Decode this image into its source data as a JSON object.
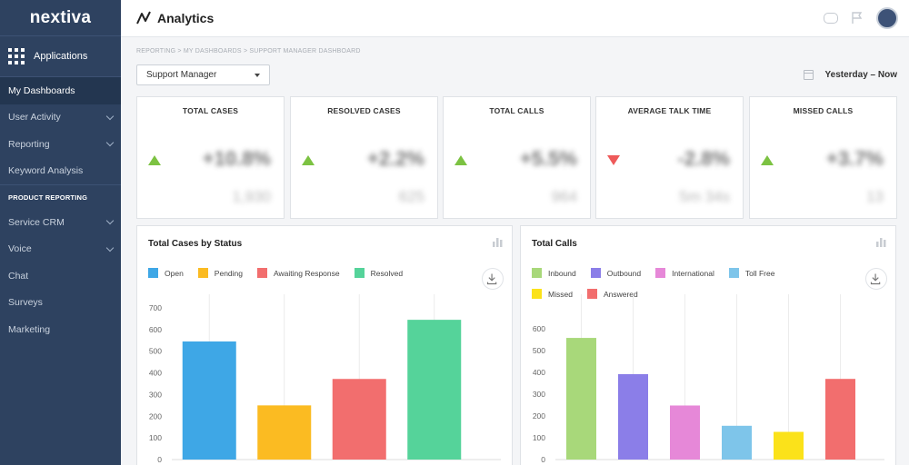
{
  "brand": "nextiva",
  "sidebar": {
    "applications_label": "Applications",
    "items": [
      {
        "label": "My Dashboards",
        "active": true,
        "chevron": false
      },
      {
        "label": "User Activity",
        "active": false,
        "chevron": true
      },
      {
        "label": "Reporting",
        "active": false,
        "chevron": true
      },
      {
        "label": "Keyword Analysis",
        "active": false,
        "chevron": false
      }
    ],
    "section_label": "PRODUCT REPORTING",
    "section_items": [
      {
        "label": "Service CRM",
        "chevron": true
      },
      {
        "label": "Voice",
        "chevron": true
      },
      {
        "label": "Chat",
        "chevron": false
      },
      {
        "label": "Surveys",
        "chevron": false
      },
      {
        "label": "Marketing",
        "chevron": false
      }
    ]
  },
  "header": {
    "title": "Analytics",
    "icons": [
      "analytics-icon",
      "chat-icon",
      "flag-icon",
      "avatar"
    ]
  },
  "breadcrumb": "REPORTING > MY DASHBOARDS > SUPPORT MANAGER DASHBOARD",
  "dashboard_select": {
    "value": "Support Manager"
  },
  "date_range": "Yesterday – Now",
  "kpis": [
    {
      "title": "TOTAL CASES",
      "trend": "up",
      "value": "+10.8%",
      "sub": "1,930"
    },
    {
      "title": "RESOLVED CASES",
      "trend": "up",
      "value": "+2.2%",
      "sub": "625"
    },
    {
      "title": "TOTAL CALLS",
      "trend": "up",
      "value": "+5.5%",
      "sub": "964"
    },
    {
      "title": "AVERAGE TALK TIME",
      "trend": "down",
      "value": "-2.8%",
      "sub": "5m 34s"
    },
    {
      "title": "MISSED CALLS",
      "trend": "up",
      "value": "+3.7%",
      "sub": "13"
    }
  ],
  "colors": {
    "sidebar_bg": "#2e4260",
    "trend_up": "#7cc242",
    "trend_down": "#ee5a5a"
  },
  "chart_data": [
    {
      "type": "bar",
      "title": "Total Cases by Status",
      "categories": [
        "Open",
        "Pending",
        "Awaiting Response",
        "Resolved"
      ],
      "values": [
        545,
        250,
        372,
        645
      ],
      "colors": [
        "#3ea7e6",
        "#fbbb22",
        "#f26e6e",
        "#55d39a"
      ],
      "yticks": [
        0,
        100,
        200,
        300,
        400,
        500,
        600,
        700
      ],
      "ylim": [
        0,
        700
      ],
      "legend": "top-left",
      "grid": false
    },
    {
      "type": "bar",
      "title": "Total Calls",
      "categories": [
        "Inbound",
        "Outbound",
        "International",
        "Toll Free",
        "Missed",
        "Answered"
      ],
      "values": [
        558,
        392,
        248,
        155,
        127,
        370
      ],
      "colors": [
        "#a8d87a",
        "#8b7ee8",
        "#e688d8",
        "#7ec5ea",
        "#fbe21a",
        "#f26e6e"
      ],
      "yticks": [
        0,
        100,
        200,
        300,
        400,
        500,
        600
      ],
      "ylim": [
        0,
        600
      ],
      "legend": "top-left",
      "grid": false
    }
  ]
}
